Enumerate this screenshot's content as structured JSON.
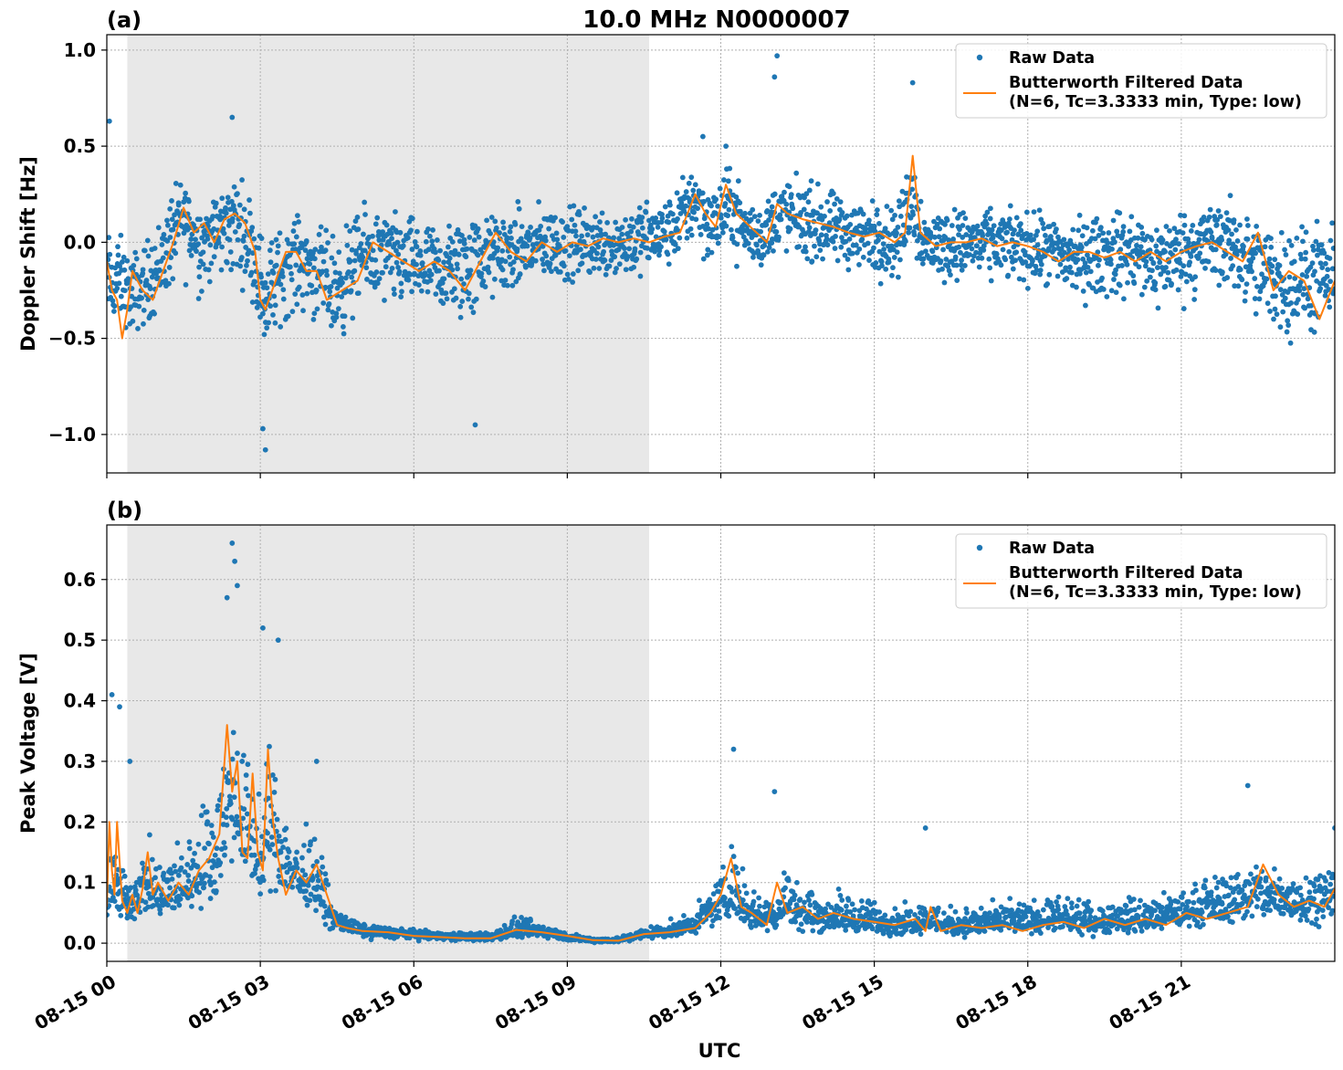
{
  "figure": {
    "title": "10.0 MHz N0000007",
    "xlabel": "UTC",
    "x_tick_labels": [
      "08-15 00",
      "08-15 03",
      "08-15 06",
      "08-15 09",
      "08-15 12",
      "08-15 15",
      "08-15 18",
      "08-15 21"
    ],
    "legend": {
      "raw_label": "Raw Data",
      "filtered_label_line1": "Butterworth Filtered Data",
      "filtered_label_line2": "(N=6, Tc=3.3333 min, Type: low)"
    },
    "colors": {
      "raw": "#1f77b4",
      "filtered": "#ff7f0e",
      "night_shading": "#e8e8e8"
    }
  },
  "chart_data": [
    {
      "type": "scatter",
      "panel_label": "(a)",
      "ylabel": "Doppler Shift [Hz]",
      "x_unit": "hours UTC on 08-15",
      "xlim": [
        0,
        24
      ],
      "ylim": [
        -1.2,
        1.08
      ],
      "yticks": [
        -1.0,
        -0.5,
        0.0,
        0.5,
        1.0
      ],
      "ytick_labels": [
        "−1.0",
        "−0.5",
        "0.0",
        "0.5",
        "1.0"
      ],
      "grid": true,
      "legend_position": "top-right",
      "shaded_region_x": [
        0.4,
        10.6
      ],
      "series": [
        {
          "name": "Raw Data",
          "style": "points",
          "x": [
            0,
            0.1,
            0.2,
            0.5,
            0.8,
            1.0,
            1.3,
            1.5,
            1.8,
            2.1,
            2.5,
            2.8,
            3.1,
            3.3,
            3.7,
            4.0,
            4.5,
            5.0,
            5.5,
            6.0,
            6.5,
            7.0,
            7.5,
            8.0,
            8.5,
            9.0,
            9.5,
            10.0,
            10.5,
            11.0,
            11.5,
            11.8,
            12.2,
            12.5,
            12.8,
            13.2,
            13.6,
            14.0,
            14.5,
            15.0,
            15.5,
            15.7,
            16.0,
            16.5,
            17.0,
            17.5,
            18.0,
            18.5,
            19.0,
            19.5,
            20.0,
            20.5,
            21.0,
            21.5,
            22.0,
            22.5,
            23.0,
            23.5,
            24.0
          ],
          "mean": [
            -0.15,
            -0.25,
            -0.2,
            -0.3,
            -0.2,
            -0.15,
            0.05,
            0.15,
            0.0,
            0.05,
            0.12,
            0.0,
            -0.3,
            -0.2,
            -0.05,
            -0.12,
            -0.25,
            -0.05,
            -0.08,
            -0.1,
            -0.15,
            -0.1,
            -0.05,
            -0.05,
            0.0,
            0.0,
            0.0,
            0.0,
            0.02,
            0.05,
            0.25,
            0.08,
            0.22,
            0.05,
            0.02,
            0.15,
            0.1,
            0.08,
            0.05,
            0.03,
            0.0,
            0.3,
            -0.02,
            0.0,
            0.0,
            0.0,
            -0.02,
            -0.05,
            -0.08,
            -0.05,
            -0.05,
            -0.1,
            -0.05,
            0.0,
            0.0,
            -0.15,
            -0.2,
            -0.2,
            -0.2
          ],
          "low": [
            -0.5,
            -0.55,
            -0.45,
            -0.55,
            -0.5,
            -0.45,
            -0.35,
            -0.3,
            -0.35,
            -0.3,
            -0.3,
            -0.3,
            -0.75,
            -0.55,
            -0.45,
            -0.5,
            -0.65,
            -0.4,
            -0.45,
            -0.45,
            -0.5,
            -0.6,
            -0.4,
            -0.35,
            -0.3,
            -0.3,
            -0.25,
            -0.28,
            -0.25,
            -0.2,
            -0.1,
            -0.2,
            -0.15,
            -0.2,
            -0.2,
            -0.1,
            -0.15,
            -0.2,
            -0.22,
            -0.25,
            -0.25,
            -0.15,
            -0.25,
            -0.28,
            -0.28,
            -0.28,
            -0.3,
            -0.35,
            -0.4,
            -0.38,
            -0.4,
            -0.45,
            -0.4,
            -0.35,
            -0.35,
            -0.55,
            -0.6,
            -0.6,
            -0.55
          ],
          "high": [
            0.15,
            0.1,
            0.15,
            0.05,
            0.1,
            0.2,
            0.35,
            0.4,
            0.3,
            0.3,
            0.45,
            0.35,
            0.1,
            0.15,
            0.2,
            0.15,
            0.15,
            0.25,
            0.25,
            0.2,
            0.15,
            0.25,
            0.2,
            0.25,
            0.25,
            0.25,
            0.25,
            0.25,
            0.28,
            0.3,
            0.5,
            0.35,
            0.45,
            0.3,
            0.3,
            0.45,
            0.4,
            0.35,
            0.3,
            0.28,
            0.3,
            0.6,
            0.25,
            0.25,
            0.22,
            0.22,
            0.22,
            0.2,
            0.2,
            0.22,
            0.25,
            0.2,
            0.25,
            0.3,
            0.3,
            0.2,
            0.2,
            0.2,
            0.15
          ],
          "outliers": [
            [
              0.05,
              0.63
            ],
            [
              2.45,
              0.65
            ],
            [
              3.1,
              -1.08
            ],
            [
              3.05,
              -0.97
            ],
            [
              7.2,
              -0.95
            ],
            [
              13.1,
              0.97
            ],
            [
              13.05,
              0.86
            ],
            [
              15.75,
              0.83
            ],
            [
              11.65,
              0.55
            ],
            [
              12.1,
              0.5
            ]
          ]
        },
        {
          "name": "Butterworth Filtered Data (N=6, Tc=3.3333 min, Type: low)",
          "style": "line",
          "x": [
            0,
            0.1,
            0.2,
            0.3,
            0.4,
            0.5,
            0.7,
            0.9,
            1.1,
            1.3,
            1.5,
            1.7,
            1.9,
            2.1,
            2.3,
            2.5,
            2.7,
            2.9,
            3.0,
            3.1,
            3.3,
            3.5,
            3.7,
            3.9,
            4.1,
            4.3,
            4.6,
            4.9,
            5.2,
            5.5,
            5.8,
            6.1,
            6.4,
            6.7,
            7.0,
            7.3,
            7.6,
            7.9,
            8.2,
            8.5,
            8.8,
            9.1,
            9.4,
            9.7,
            10.0,
            10.3,
            10.6,
            10.9,
            11.2,
            11.5,
            11.7,
            11.9,
            12.1,
            12.3,
            12.5,
            12.7,
            12.9,
            13.1,
            13.3,
            13.6,
            13.9,
            14.2,
            14.5,
            14.8,
            15.1,
            15.4,
            15.6,
            15.75,
            15.9,
            16.2,
            16.5,
            16.8,
            17.1,
            17.4,
            17.7,
            18.0,
            18.3,
            18.6,
            18.9,
            19.2,
            19.5,
            19.8,
            20.1,
            20.4,
            20.7,
            21.0,
            21.3,
            21.6,
            21.9,
            22.2,
            22.5,
            22.8,
            23.1,
            23.4,
            23.7,
            24.0
          ],
          "y": [
            -0.1,
            -0.25,
            -0.3,
            -0.5,
            -0.35,
            -0.15,
            -0.25,
            -0.3,
            -0.15,
            0.0,
            0.18,
            0.05,
            0.1,
            0.0,
            0.12,
            0.15,
            0.1,
            -0.05,
            -0.3,
            -0.35,
            -0.2,
            -0.05,
            -0.05,
            -0.15,
            -0.15,
            -0.3,
            -0.25,
            -0.2,
            0.0,
            -0.05,
            -0.1,
            -0.15,
            -0.1,
            -0.15,
            -0.25,
            -0.1,
            0.05,
            -0.05,
            -0.1,
            0.0,
            -0.05,
            0.0,
            -0.02,
            0.02,
            0.0,
            0.02,
            0.0,
            0.03,
            0.05,
            0.25,
            0.15,
            0.08,
            0.3,
            0.15,
            0.1,
            0.05,
            0.0,
            0.2,
            0.15,
            0.12,
            0.1,
            0.08,
            0.05,
            0.03,
            0.05,
            0.0,
            0.05,
            0.45,
            0.05,
            -0.02,
            0.0,
            0.0,
            0.02,
            -0.02,
            0.0,
            -0.02,
            -0.05,
            -0.1,
            -0.05,
            -0.05,
            -0.08,
            -0.05,
            -0.1,
            -0.05,
            -0.1,
            -0.05,
            -0.02,
            0.0,
            -0.05,
            -0.1,
            0.05,
            -0.25,
            -0.15,
            -0.2,
            -0.4,
            -0.2
          ]
        }
      ]
    },
    {
      "type": "scatter",
      "panel_label": "(b)",
      "ylabel": "Peak Voltage [V]",
      "x_unit": "hours UTC on 08-15",
      "xlim": [
        0,
        24
      ],
      "ylim": [
        -0.03,
        0.69
      ],
      "yticks": [
        0.0,
        0.1,
        0.2,
        0.3,
        0.4,
        0.5,
        0.6
      ],
      "ytick_labels": [
        "0.0",
        "0.1",
        "0.2",
        "0.3",
        "0.4",
        "0.5",
        "0.6"
      ],
      "grid": true,
      "legend_position": "top-right",
      "shaded_region_x": [
        0.4,
        10.6
      ],
      "series": [
        {
          "name": "Raw Data",
          "style": "points",
          "x": [
            0,
            0.1,
            0.2,
            0.4,
            0.6,
            0.8,
            1.0,
            1.3,
            1.6,
            1.9,
            2.2,
            2.4,
            2.6,
            2.8,
            3.0,
            3.2,
            3.4,
            3.6,
            3.8,
            4.0,
            4.2,
            4.4,
            4.7,
            5.0,
            5.5,
            6.0,
            6.5,
            7.0,
            7.5,
            8.0,
            8.5,
            9.0,
            9.5,
            10.0,
            10.5,
            11.0,
            11.5,
            11.9,
            12.2,
            12.6,
            13.0,
            13.3,
            13.6,
            14.0,
            14.5,
            15.0,
            15.5,
            16.0,
            16.5,
            17.0,
            17.5,
            18.0,
            18.5,
            19.0,
            19.5,
            20.0,
            20.5,
            21.0,
            21.5,
            22.0,
            22.5,
            23.0,
            23.5,
            24.0
          ],
          "mean": [
            0.08,
            0.1,
            0.08,
            0.06,
            0.08,
            0.09,
            0.07,
            0.08,
            0.1,
            0.12,
            0.15,
            0.25,
            0.2,
            0.18,
            0.12,
            0.2,
            0.15,
            0.12,
            0.1,
            0.12,
            0.08,
            0.04,
            0.03,
            0.02,
            0.018,
            0.015,
            0.012,
            0.01,
            0.01,
            0.02,
            0.02,
            0.01,
            0.005,
            0.005,
            0.015,
            0.02,
            0.03,
            0.06,
            0.09,
            0.05,
            0.04,
            0.07,
            0.05,
            0.04,
            0.04,
            0.035,
            0.03,
            0.04,
            0.03,
            0.03,
            0.035,
            0.035,
            0.04,
            0.035,
            0.035,
            0.04,
            0.04,
            0.05,
            0.06,
            0.07,
            0.08,
            0.07,
            0.07,
            0.08
          ],
          "low": [
            0.02,
            0.02,
            0.03,
            0.02,
            0.03,
            0.03,
            0.03,
            0.03,
            0.04,
            0.05,
            0.06,
            0.1,
            0.1,
            0.08,
            0.03,
            0.06,
            0.06,
            0.05,
            0.04,
            0.04,
            0.03,
            0.015,
            0.01,
            0.005,
            0.005,
            0.003,
            0.002,
            0.001,
            0.001,
            0.005,
            0.005,
            0.002,
            0.0,
            0.0,
            0.003,
            0.005,
            0.01,
            0.02,
            0.03,
            0.01,
            0.01,
            0.02,
            0.01,
            0.01,
            0.01,
            0.01,
            0.005,
            0.01,
            0.005,
            0.005,
            0.008,
            0.008,
            0.01,
            0.008,
            0.008,
            0.01,
            0.01,
            0.015,
            0.02,
            0.02,
            0.025,
            0.02,
            0.02,
            0.03
          ],
          "high": [
            0.22,
            0.25,
            0.18,
            0.14,
            0.16,
            0.2,
            0.16,
            0.18,
            0.22,
            0.28,
            0.32,
            0.45,
            0.38,
            0.36,
            0.25,
            0.38,
            0.3,
            0.22,
            0.2,
            0.22,
            0.18,
            0.07,
            0.05,
            0.035,
            0.03,
            0.025,
            0.02,
            0.02,
            0.02,
            0.05,
            0.04,
            0.02,
            0.01,
            0.012,
            0.03,
            0.04,
            0.06,
            0.12,
            0.2,
            0.1,
            0.1,
            0.15,
            0.12,
            0.1,
            0.1,
            0.08,
            0.07,
            0.08,
            0.07,
            0.07,
            0.08,
            0.08,
            0.09,
            0.08,
            0.08,
            0.09,
            0.09,
            0.1,
            0.12,
            0.14,
            0.16,
            0.14,
            0.14,
            0.15
          ],
          "outliers": [
            [
              0.1,
              0.41
            ],
            [
              0.25,
              0.39
            ],
            [
              0.45,
              0.3
            ],
            [
              2.45,
              0.66
            ],
            [
              2.5,
              0.63
            ],
            [
              2.55,
              0.59
            ],
            [
              2.35,
              0.57
            ],
            [
              3.05,
              0.52
            ],
            [
              3.35,
              0.5
            ],
            [
              4.1,
              0.3
            ],
            [
              12.25,
              0.32
            ],
            [
              13.05,
              0.25
            ],
            [
              16.0,
              0.19
            ],
            [
              22.3,
              0.26
            ],
            [
              24.0,
              0.19
            ]
          ]
        },
        {
          "name": "Butterworth Filtered Data (N=6, Tc=3.3333 min, Type: low)",
          "style": "line",
          "x": [
            0,
            0.05,
            0.1,
            0.15,
            0.2,
            0.3,
            0.4,
            0.5,
            0.6,
            0.7,
            0.8,
            0.9,
            1.0,
            1.2,
            1.4,
            1.6,
            1.8,
            2.0,
            2.2,
            2.35,
            2.45,
            2.55,
            2.65,
            2.75,
            2.85,
            2.95,
            3.05,
            3.15,
            3.25,
            3.35,
            3.5,
            3.7,
            3.9,
            4.1,
            4.3,
            4.5,
            4.7,
            5.0,
            5.5,
            6.0,
            6.5,
            7.0,
            7.5,
            8.0,
            8.5,
            9.0,
            9.5,
            10.0,
            10.5,
            11.0,
            11.5,
            11.8,
            12.0,
            12.2,
            12.4,
            12.6,
            12.9,
            13.1,
            13.3,
            13.6,
            13.9,
            14.2,
            14.6,
            15.0,
            15.4,
            15.8,
            16.0,
            16.1,
            16.3,
            16.7,
            17.1,
            17.5,
            17.9,
            18.3,
            18.7,
            19.1,
            19.5,
            19.9,
            20.3,
            20.7,
            21.1,
            21.5,
            21.9,
            22.3,
            22.6,
            22.9,
            23.2,
            23.5,
            23.8,
            24.0
          ],
          "y": [
            0.06,
            0.2,
            0.12,
            0.08,
            0.2,
            0.07,
            0.05,
            0.08,
            0.05,
            0.09,
            0.15,
            0.08,
            0.1,
            0.07,
            0.1,
            0.08,
            0.12,
            0.14,
            0.18,
            0.36,
            0.25,
            0.3,
            0.15,
            0.14,
            0.28,
            0.15,
            0.12,
            0.32,
            0.2,
            0.14,
            0.08,
            0.12,
            0.1,
            0.13,
            0.08,
            0.03,
            0.025,
            0.02,
            0.018,
            0.012,
            0.01,
            0.008,
            0.008,
            0.022,
            0.018,
            0.012,
            0.005,
            0.004,
            0.015,
            0.018,
            0.025,
            0.05,
            0.08,
            0.14,
            0.06,
            0.05,
            0.03,
            0.1,
            0.05,
            0.06,
            0.04,
            0.05,
            0.04,
            0.035,
            0.03,
            0.04,
            0.02,
            0.06,
            0.02,
            0.03,
            0.025,
            0.03,
            0.02,
            0.03,
            0.035,
            0.025,
            0.04,
            0.03,
            0.04,
            0.03,
            0.05,
            0.04,
            0.05,
            0.06,
            0.13,
            0.08,
            0.06,
            0.07,
            0.06,
            0.09
          ]
        }
      ]
    }
  ]
}
